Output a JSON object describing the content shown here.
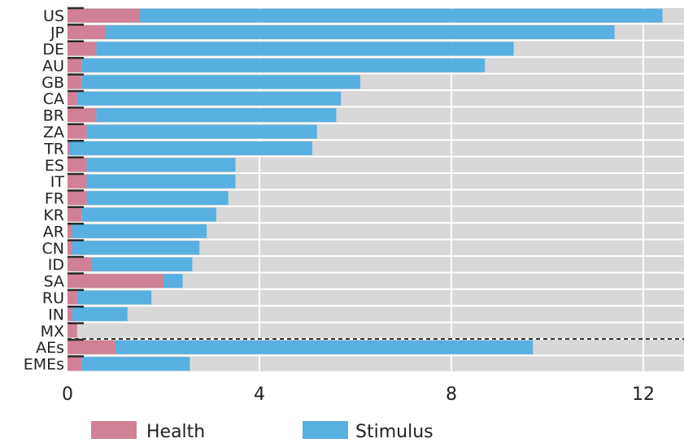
{
  "chart_data": {
    "type": "bar",
    "orientation": "horizontal",
    "stacked": true,
    "categories": [
      "US",
      "JP",
      "DE",
      "AU",
      "GB",
      "CA",
      "BR",
      "ZA",
      "TR",
      "ES",
      "IT",
      "FR",
      "KR",
      "AR",
      "CN",
      "ID",
      "SA",
      "RU",
      "IN",
      "MX",
      "AEs",
      "EMEs"
    ],
    "series": [
      {
        "name": "Health",
        "color": "#d08196",
        "values": [
          1.5,
          0.8,
          0.6,
          0.3,
          0.3,
          0.2,
          0.6,
          0.4,
          0.05,
          0.4,
          0.4,
          0.4,
          0.3,
          0.1,
          0.1,
          0.5,
          2.0,
          0.2,
          0.1,
          0.2,
          1.0,
          0.3
        ]
      },
      {
        "name": "Stimulus",
        "color": "#58b0e1",
        "values": [
          10.9,
          10.6,
          8.7,
          8.4,
          5.8,
          5.5,
          5.0,
          4.8,
          5.05,
          3.1,
          3.1,
          2.95,
          2.8,
          2.8,
          2.65,
          2.1,
          0.4,
          1.55,
          1.15,
          0.0,
          8.7,
          2.25
        ]
      }
    ],
    "xlim": [
      0,
      12.8
    ],
    "xticks": [
      0,
      4,
      8,
      12
    ],
    "grid": true,
    "separator_after": "MX",
    "legend": {
      "position": "bottom"
    },
    "title": "",
    "xlabel": "",
    "ylabel": ""
  }
}
